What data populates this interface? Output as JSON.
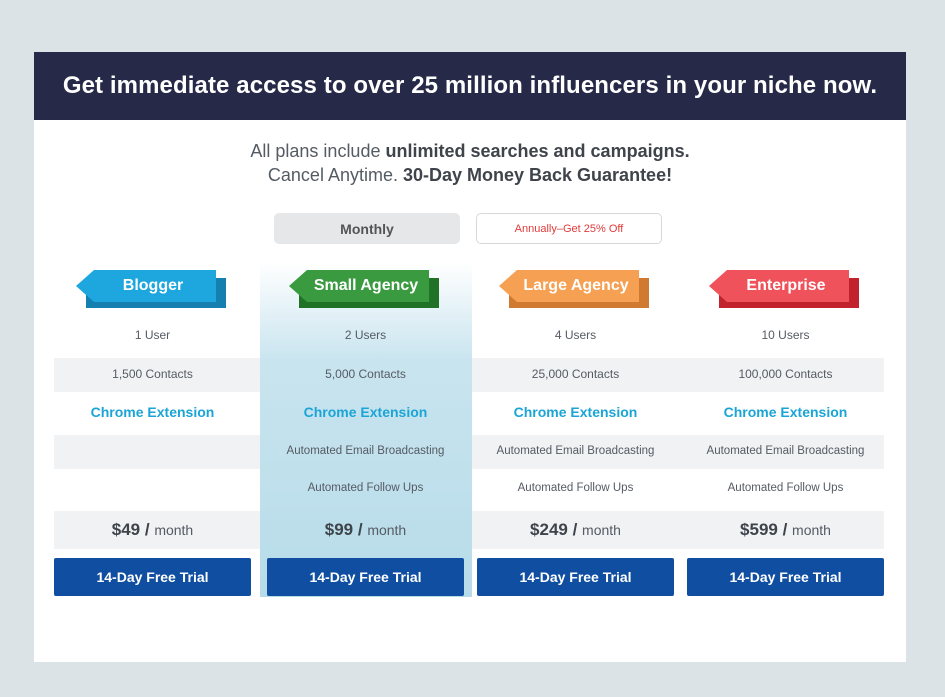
{
  "banner": {
    "title": "Get immediate access to over 25 million influencers in your niche now."
  },
  "intro": {
    "line1_prefix": "All plans include ",
    "line1_bold": "unlimited searches and campaigns.",
    "line2_prefix": "Cancel Anytime. ",
    "line2_bold": "30-Day Money Back Guarantee!"
  },
  "billing_toggle": {
    "monthly_label": "Monthly",
    "annual_label": "Annually–Get 25% Off",
    "selected": "Monthly"
  },
  "colors": {
    "banner_bg": "#262a48",
    "button_blue": "#0f4ea0",
    "chrome_link": "#1ba5d6",
    "blogger": "#1ea6de",
    "blogger_dark": "#157fb0",
    "small_agency": "#3a9a3f",
    "small_agency_dark": "#1f7226",
    "large_agency": "#f5a052",
    "large_agency_dark": "#cf7a30",
    "enterprise": "#ef525a",
    "enterprise_dark": "#c2222e"
  },
  "plans": [
    {
      "name": "Blogger",
      "users": "1 User",
      "contacts": "1,500 Contacts",
      "chrome": "Chrome Extension",
      "email": "",
      "followups": "",
      "price": "$49",
      "per": "month",
      "cta": "14-Day Free Trial"
    },
    {
      "name": "Small Agency",
      "users": "2 Users",
      "contacts": "5,000 Contacts",
      "chrome": "Chrome Extension",
      "email": "Automated Email Broadcasting",
      "followups": "Automated Follow Ups",
      "price": "$99",
      "per": "month",
      "cta": "14-Day Free Trial"
    },
    {
      "name": "Large Agency",
      "users": "4 Users",
      "contacts": "25,000 Contacts",
      "chrome": "Chrome Extension",
      "email": "Automated Email Broadcasting",
      "followups": "Automated Follow Ups",
      "price": "$249",
      "per": "month",
      "cta": "14-Day Free Trial"
    },
    {
      "name": "Enterprise",
      "users": "10 Users",
      "contacts": "100,000 Contacts",
      "chrome": "Chrome Extension",
      "email": "Automated Email Broadcasting",
      "followups": "Automated Follow Ups",
      "price": "$599",
      "per": "month",
      "cta": "14-Day Free Trial"
    }
  ]
}
